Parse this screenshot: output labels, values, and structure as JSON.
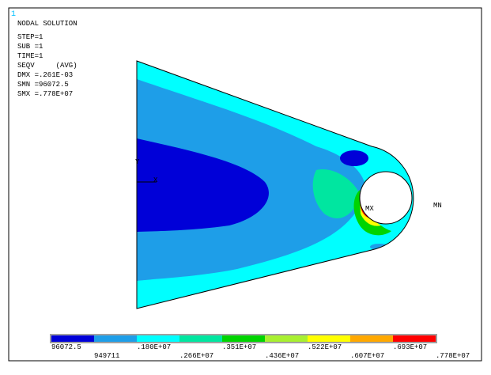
{
  "window_number": "1",
  "info": {
    "title": "NODAL SOLUTION",
    "lines": [
      "STEP=1",
      "SUB =1",
      "TIME=1",
      "SEQV     (AVG)",
      "DMX =.261E-03",
      "SMN =96072.5",
      "SMX =.778E+07"
    ]
  },
  "triad": {
    "y": "Y",
    "x": "X"
  },
  "markers": {
    "max": "MX",
    "min": "MN"
  },
  "legend": {
    "labels": [
      "96072.5",
      "949711",
      ".180E+07",
      ".266E+07",
      ".351E+07",
      ".436E+07",
      ".522E+07",
      ".607E+07",
      ".693E+07",
      ".778E+07"
    ],
    "colors": [
      "#0000d8",
      "#1e9ee8",
      "#00ffff",
      "#00e6a0",
      "#00d400",
      "#a8f030",
      "#ffff00",
      "#ffa800",
      "#ff0000"
    ]
  }
}
